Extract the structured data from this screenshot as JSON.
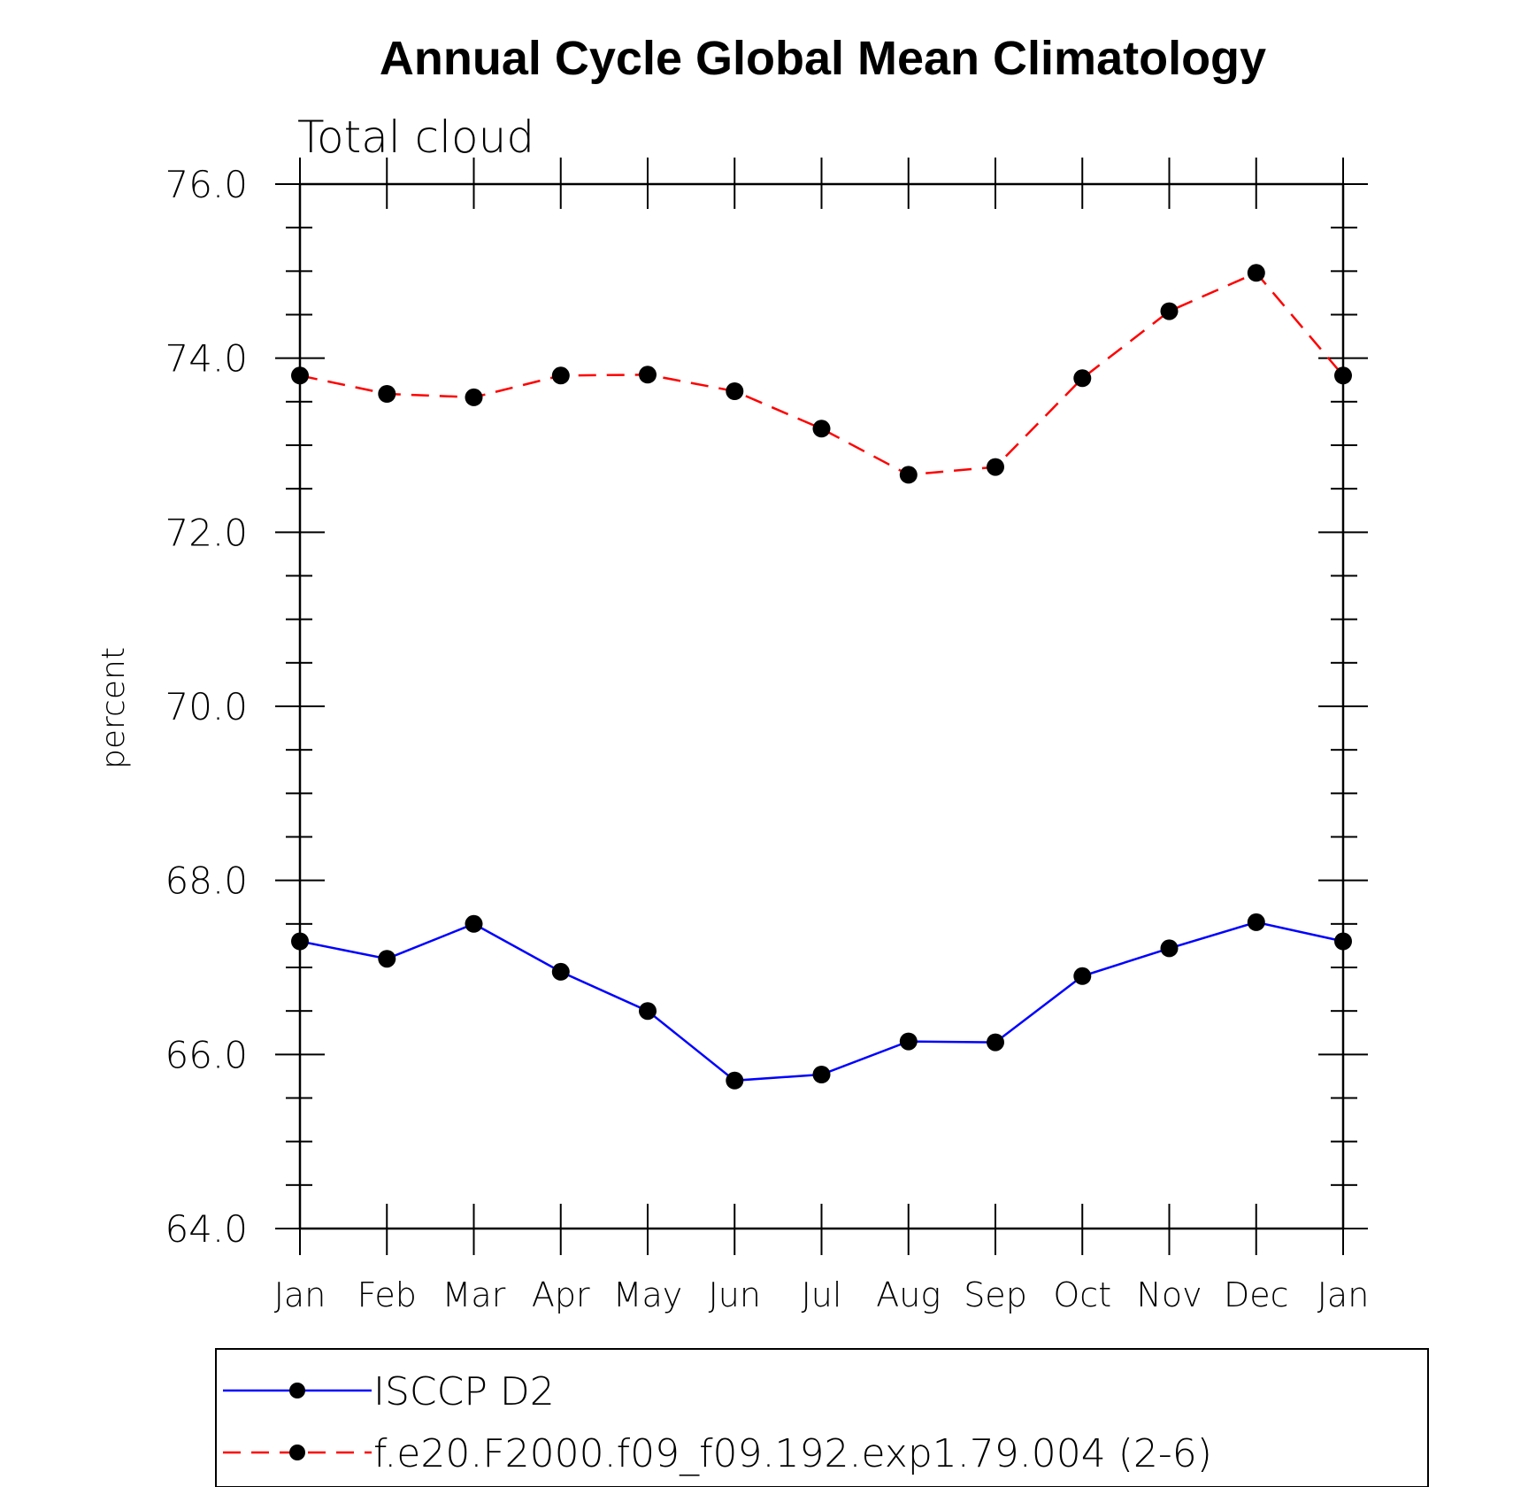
{
  "chart_data": {
    "type": "line",
    "title": "Annual Cycle Global Mean Climatology",
    "subtitle": "Total cloud",
    "xlabel": "",
    "ylabel": "percent",
    "categories": [
      "Jan",
      "Feb",
      "Mar",
      "Apr",
      "May",
      "Jun",
      "Jul",
      "Aug",
      "Sep",
      "Oct",
      "Nov",
      "Dec",
      "Jan"
    ],
    "ylim": [
      64.0,
      76.0
    ],
    "yticks": [
      "64.0",
      "66.0",
      "68.0",
      "70.0",
      "72.0",
      "74.0",
      "76.0"
    ],
    "grid": false,
    "legend_position": "bottom",
    "series": [
      {
        "name": "ISCCP D2",
        "color": "#0000ff",
        "line_style": "solid",
        "marker": "filled-circle",
        "values": [
          67.3,
          67.1,
          67.5,
          66.95,
          66.5,
          65.7,
          65.77,
          66.15,
          66.14,
          66.9,
          67.22,
          67.52,
          67.3
        ]
      },
      {
        "name": "f.e20.F2000.f09_f09.192.exp1.79.004 (2-6)",
        "color": "#ff0000",
        "line_style": "dashed",
        "marker": "filled-circle",
        "values": [
          73.8,
          73.59,
          73.55,
          73.8,
          73.81,
          73.62,
          73.19,
          72.66,
          72.75,
          73.77,
          74.54,
          74.98,
          73.8
        ]
      }
    ]
  }
}
